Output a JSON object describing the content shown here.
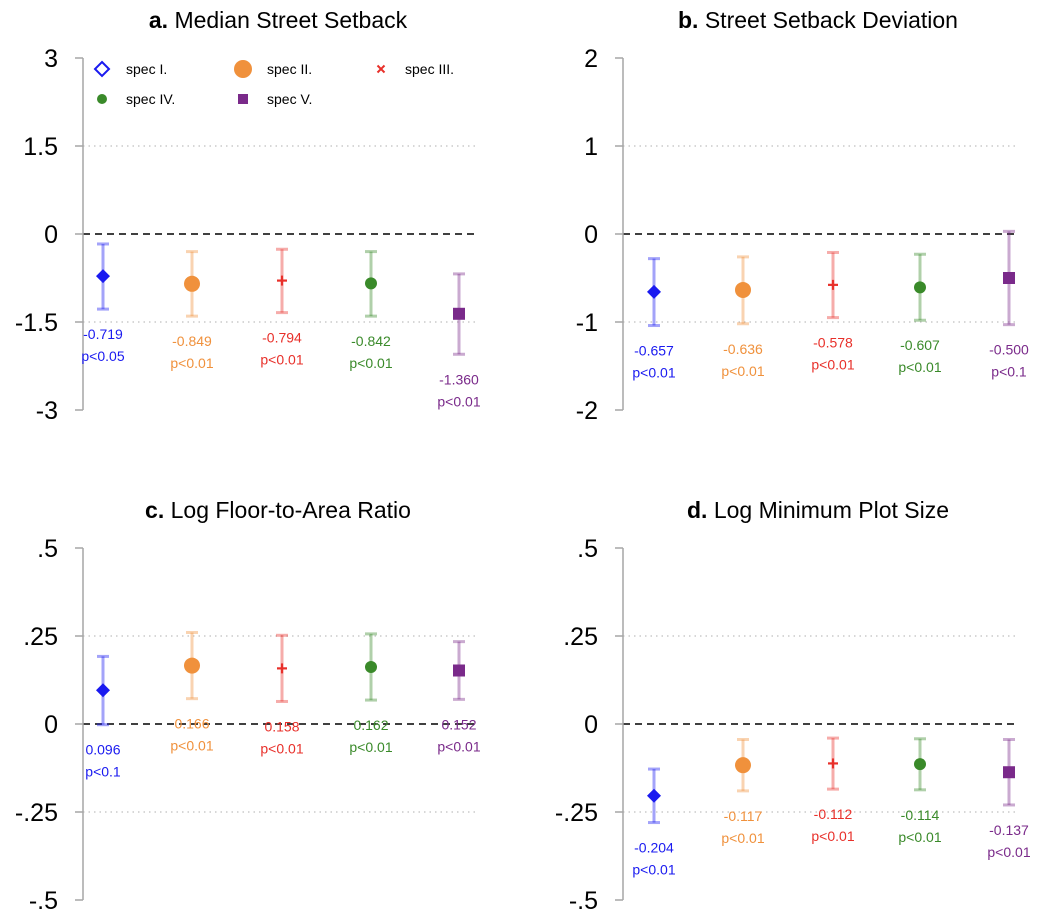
{
  "colors": {
    "spec1": "#1a1af0",
    "spec2": "#f0913c",
    "spec3": "#e8302a",
    "spec4": "#3a8a2a",
    "spec5": "#7a2a8a",
    "axis": "#a6a6a6",
    "zero_line": "#000000",
    "grid": "#bfbfbf"
  },
  "legend": {
    "items": [
      {
        "label": "spec I.",
        "marker": "hollow-diamond",
        "color_key": "spec1"
      },
      {
        "label": "spec II.",
        "marker": "circle",
        "color_key": "spec2"
      },
      {
        "label": "spec III.",
        "marker": "x",
        "color_key": "spec3"
      },
      {
        "label": "spec IV.",
        "marker": "small-circle",
        "color_key": "spec4"
      },
      {
        "label": "spec V.",
        "marker": "square",
        "color_key": "spec5"
      }
    ]
  },
  "chart_data": [
    {
      "type": "scatter",
      "panel_letter": "a.",
      "title": "Median Street Setback",
      "ylim": [
        -3,
        3
      ],
      "yticks": [
        3,
        1.5,
        0,
        -1.5,
        -3
      ],
      "ytick_labels": [
        "3",
        "1.5",
        "0",
        "-1.5",
        "-3"
      ],
      "dotted_gridlines": [
        1.5,
        -1.5
      ],
      "zero_line": 0,
      "series": [
        {
          "name": "spec I.",
          "estimate": -0.719,
          "ci_low": -1.28,
          "ci_high": -0.17,
          "label_value": "-0.719",
          "label_p": "p<0.05",
          "marker": "diamond",
          "color_key": "spec1"
        },
        {
          "name": "spec II.",
          "estimate": -0.849,
          "ci_low": -1.4,
          "ci_high": -0.3,
          "label_value": "-0.849",
          "label_p": "p<0.01",
          "marker": "circle",
          "color_key": "spec2"
        },
        {
          "name": "spec III.",
          "estimate": -0.794,
          "ci_low": -1.34,
          "ci_high": -0.26,
          "label_value": "-0.794",
          "label_p": "p<0.01",
          "marker": "plus",
          "color_key": "spec3"
        },
        {
          "name": "spec IV.",
          "estimate": -0.842,
          "ci_low": -1.4,
          "ci_high": -0.3,
          "label_value": "-0.842",
          "label_p": "p<0.01",
          "marker": "small-circle",
          "color_key": "spec4"
        },
        {
          "name": "spec V.",
          "estimate": -1.36,
          "ci_low": -2.05,
          "ci_high": -0.68,
          "label_value": "-1.360",
          "label_p": "p<0.01",
          "marker": "square",
          "color_key": "spec5"
        }
      ]
    },
    {
      "type": "scatter",
      "panel_letter": "b.",
      "title": "Street Setback Deviation",
      "ylim": [
        -2,
        2
      ],
      "yticks": [
        2,
        1,
        0,
        -1,
        -2
      ],
      "ytick_labels": [
        "2",
        "1",
        "0",
        "-1",
        "-2"
      ],
      "dotted_gridlines": [
        1,
        -1
      ],
      "zero_line": 0,
      "series": [
        {
          "name": "spec I.",
          "estimate": -0.657,
          "ci_low": -1.04,
          "ci_high": -0.28,
          "label_value": "-0.657",
          "label_p": "p<0.01",
          "marker": "diamond",
          "color_key": "spec1"
        },
        {
          "name": "spec II.",
          "estimate": -0.636,
          "ci_low": -1.02,
          "ci_high": -0.26,
          "label_value": "-0.636",
          "label_p": "p<0.01",
          "marker": "circle",
          "color_key": "spec2"
        },
        {
          "name": "spec III.",
          "estimate": -0.578,
          "ci_low": -0.95,
          "ci_high": -0.21,
          "label_value": "-0.578",
          "label_p": "p<0.01",
          "marker": "plus",
          "color_key": "spec3"
        },
        {
          "name": "spec IV.",
          "estimate": -0.607,
          "ci_low": -0.98,
          "ci_high": -0.23,
          "label_value": "-0.607",
          "label_p": "p<0.01",
          "marker": "small-circle",
          "color_key": "spec4"
        },
        {
          "name": "spec V.",
          "estimate": -0.5,
          "ci_low": -1.03,
          "ci_high": 0.03,
          "label_value": "-0.500",
          "label_p": "p<0.1",
          "marker": "square",
          "color_key": "spec5"
        }
      ]
    },
    {
      "type": "scatter",
      "panel_letter": "c.",
      "title": "Log Floor-to-Area Ratio",
      "ylim": [
        -0.5,
        0.5
      ],
      "yticks": [
        0.5,
        0.25,
        0,
        -0.25,
        -0.5
      ],
      "ytick_labels": [
        ".5",
        ".25",
        "0",
        "-.25",
        "-.5"
      ],
      "dotted_gridlines": [
        0.25,
        -0.25
      ],
      "zero_line": 0,
      "series": [
        {
          "name": "spec I.",
          "estimate": 0.096,
          "ci_low": -0.002,
          "ci_high": 0.192,
          "label_value": "0.096",
          "label_p": "p<0.1",
          "marker": "diamond",
          "color_key": "spec1"
        },
        {
          "name": "spec II.",
          "estimate": 0.166,
          "ci_low": 0.072,
          "ci_high": 0.26,
          "label_value": "0.166",
          "label_p": "p<0.01",
          "marker": "circle",
          "color_key": "spec2"
        },
        {
          "name": "spec III.",
          "estimate": 0.158,
          "ci_low": 0.064,
          "ci_high": 0.252,
          "label_value": "0.158",
          "label_p": "p<0.01",
          "marker": "plus",
          "color_key": "spec3"
        },
        {
          "name": "spec IV.",
          "estimate": 0.162,
          "ci_low": 0.068,
          "ci_high": 0.256,
          "label_value": "0.162",
          "label_p": "p<0.01",
          "marker": "small-circle",
          "color_key": "spec4"
        },
        {
          "name": "spec V.",
          "estimate": 0.152,
          "ci_low": 0.07,
          "ci_high": 0.234,
          "label_value": "0.152",
          "label_p": "p<0.01",
          "marker": "square",
          "color_key": "spec5"
        }
      ]
    },
    {
      "type": "scatter",
      "panel_letter": "d.",
      "title": "Log Minimum Plot Size",
      "ylim": [
        -0.5,
        0.5
      ],
      "yticks": [
        0.5,
        0.25,
        0,
        -0.25,
        -0.5
      ],
      "ytick_labels": [
        ".5",
        ".25",
        "0",
        "-.25",
        "-.5"
      ],
      "dotted_gridlines": [
        0.25,
        -0.25
      ],
      "zero_line": 0,
      "series": [
        {
          "name": "spec I.",
          "estimate": -0.204,
          "ci_low": -0.28,
          "ci_high": -0.128,
          "label_value": "-0.204",
          "label_p": "p<0.01",
          "marker": "diamond",
          "color_key": "spec1"
        },
        {
          "name": "spec II.",
          "estimate": -0.117,
          "ci_low": -0.19,
          "ci_high": -0.044,
          "label_value": "-0.117",
          "label_p": "p<0.01",
          "marker": "circle",
          "color_key": "spec2"
        },
        {
          "name": "spec III.",
          "estimate": -0.112,
          "ci_low": -0.185,
          "ci_high": -0.04,
          "label_value": "-0.112",
          "label_p": "p<0.01",
          "marker": "plus",
          "color_key": "spec3"
        },
        {
          "name": "spec IV.",
          "estimate": -0.114,
          "ci_low": -0.187,
          "ci_high": -0.042,
          "label_value": "-0.114",
          "label_p": "p<0.01",
          "marker": "small-circle",
          "color_key": "spec4"
        },
        {
          "name": "spec V.",
          "estimate": -0.137,
          "ci_low": -0.23,
          "ci_high": -0.044,
          "label_value": "-0.137",
          "label_p": "p<0.01",
          "marker": "square",
          "color_key": "spec5"
        }
      ]
    }
  ]
}
